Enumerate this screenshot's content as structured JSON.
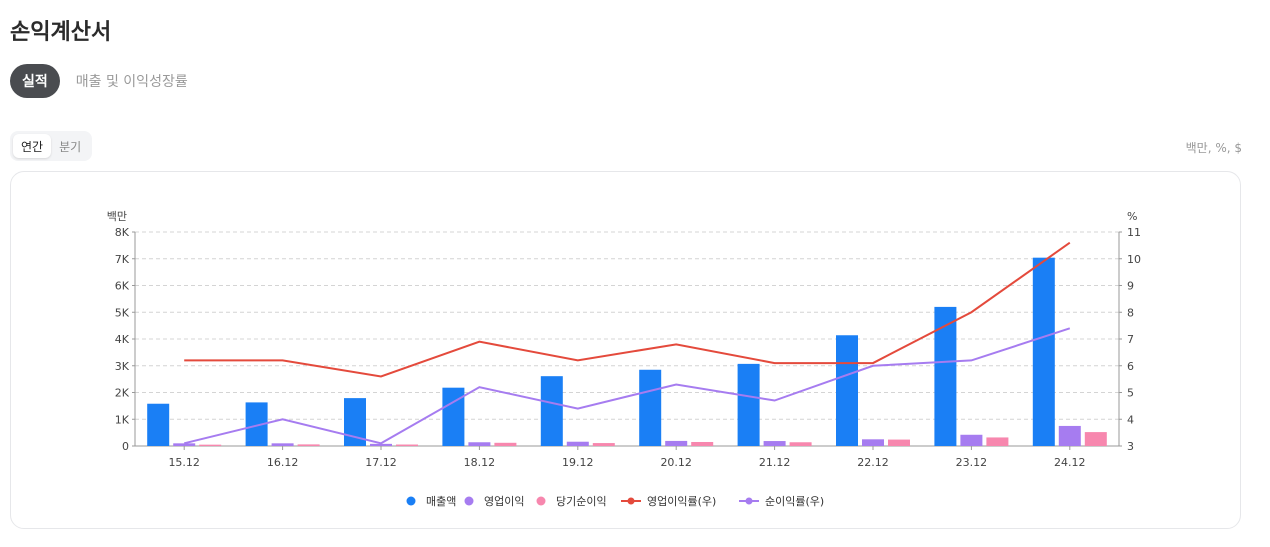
{
  "page": {
    "title": "손익계산서",
    "tabs": [
      {
        "label": "실적",
        "active": true
      },
      {
        "label": "매출 및 이익성장률",
        "active": false
      }
    ],
    "period_toggle": [
      {
        "label": "연간",
        "active": true
      },
      {
        "label": "분기",
        "active": false
      }
    ],
    "unit_note": "백만, %, $"
  },
  "colors": {
    "revenue": "#1a7ff5",
    "operating_profit": "#a67cf0",
    "net_income": "#f787ae",
    "operating_margin": "#e44a3c",
    "net_margin": "#a67cf0"
  },
  "chart_data": {
    "type": "bar",
    "categories": [
      "15.12",
      "16.12",
      "17.12",
      "18.12",
      "19.12",
      "20.12",
      "21.12",
      "22.12",
      "23.12",
      "24.12"
    ],
    "y_left": {
      "label": "백만",
      "ylim": [
        0,
        8000
      ],
      "ticks": [
        "0",
        "1K",
        "2K",
        "3K",
        "4K",
        "5K",
        "6K",
        "7K",
        "8K"
      ]
    },
    "y_right": {
      "label": "%",
      "ylim": [
        3,
        11
      ],
      "ticks": [
        "3",
        "4",
        "5",
        "6",
        "7",
        "8",
        "9",
        "10",
        "11"
      ]
    },
    "grid": true,
    "legend_position": "bottom",
    "series": [
      {
        "name": "매출액",
        "type": "bar",
        "axis": "left",
        "values": [
          1580,
          1630,
          1790,
          2180,
          2610,
          2850,
          3070,
          4140,
          5200,
          7040
        ]
      },
      {
        "name": "영업이익",
        "type": "bar",
        "axis": "left",
        "values": [
          100,
          100,
          80,
          140,
          160,
          190,
          185,
          250,
          420,
          750
        ]
      },
      {
        "name": "당기순이익",
        "type": "bar",
        "axis": "left",
        "values": [
          50,
          60,
          55,
          120,
          110,
          150,
          140,
          240,
          320,
          520
        ]
      },
      {
        "name": "영업이익률(우)",
        "type": "line",
        "axis": "right",
        "values": [
          6.2,
          6.2,
          5.6,
          6.9,
          6.2,
          6.8,
          6.1,
          6.1,
          8.0,
          10.6
        ]
      },
      {
        "name": "순이익률(우)",
        "type": "line",
        "axis": "right",
        "values": [
          3.1,
          4.0,
          3.1,
          5.2,
          4.4,
          5.3,
          4.7,
          6.0,
          6.2,
          7.4
        ]
      }
    ]
  }
}
